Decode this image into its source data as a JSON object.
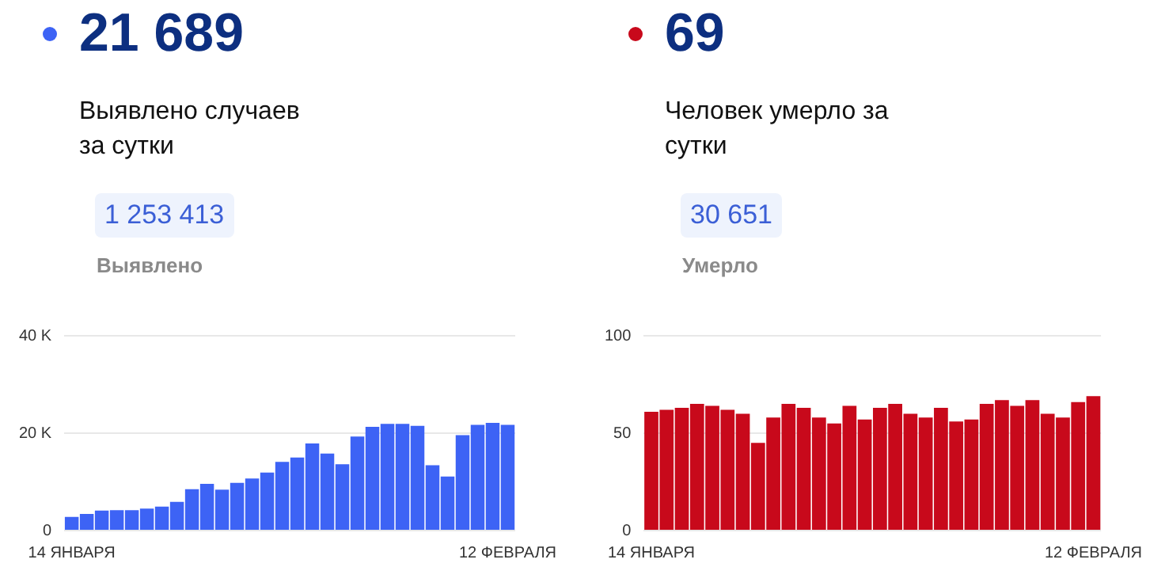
{
  "chart_data": [
    {
      "type": "bar",
      "title": "21 689",
      "subtitle": "Выявлено случаев за сутки",
      "annotations": [
        "1 253 413",
        "Выявлено"
      ],
      "categories": [
        "14 ЯНВАРЯ",
        null,
        null,
        null,
        null,
        null,
        null,
        null,
        null,
        null,
        null,
        null,
        null,
        null,
        null,
        null,
        null,
        null,
        null,
        null,
        null,
        null,
        null,
        null,
        null,
        null,
        null,
        null,
        null,
        "12 ФЕВРАЛЯ"
      ],
      "values": [
        2800,
        3400,
        4100,
        4200,
        4200,
        4500,
        4900,
        5900,
        8500,
        9600,
        8400,
        9800,
        10700,
        11900,
        14100,
        15000,
        17900,
        15800,
        13600,
        19300,
        21300,
        21900,
        21900,
        21500,
        13400,
        11100,
        19600,
        21700,
        22100,
        21700
      ],
      "color": "#3d63f5",
      "ylim": [
        0,
        40000
      ],
      "yticks": [
        0,
        {
          "value": 20000,
          "label": "20 K"
        },
        {
          "value": 40000,
          "label": "40 K"
        }
      ],
      "grid": "y",
      "legend": false
    },
    {
      "type": "bar",
      "title": "69",
      "subtitle": "Человек умерло за сутки",
      "annotations": [
        "30 651",
        "Умерло"
      ],
      "categories": [
        "14 ЯНВАРЯ",
        null,
        null,
        null,
        null,
        null,
        null,
        null,
        null,
        null,
        null,
        null,
        null,
        null,
        null,
        null,
        null,
        null,
        null,
        null,
        null,
        null,
        null,
        null,
        null,
        null,
        null,
        null,
        null,
        "12 ФЕВРАЛЯ"
      ],
      "values": [
        61,
        62,
        63,
        65,
        64,
        62,
        60,
        45,
        58,
        65,
        63,
        58,
        55,
        64,
        57,
        63,
        65,
        60,
        58,
        63,
        56,
        57,
        65,
        67,
        64,
        67,
        60,
        58,
        66,
        69
      ],
      "color": "#c8091b",
      "ylim": [
        0,
        100
      ],
      "yticks": [
        0,
        50,
        100
      ],
      "grid": "y",
      "legend": false
    }
  ]
}
